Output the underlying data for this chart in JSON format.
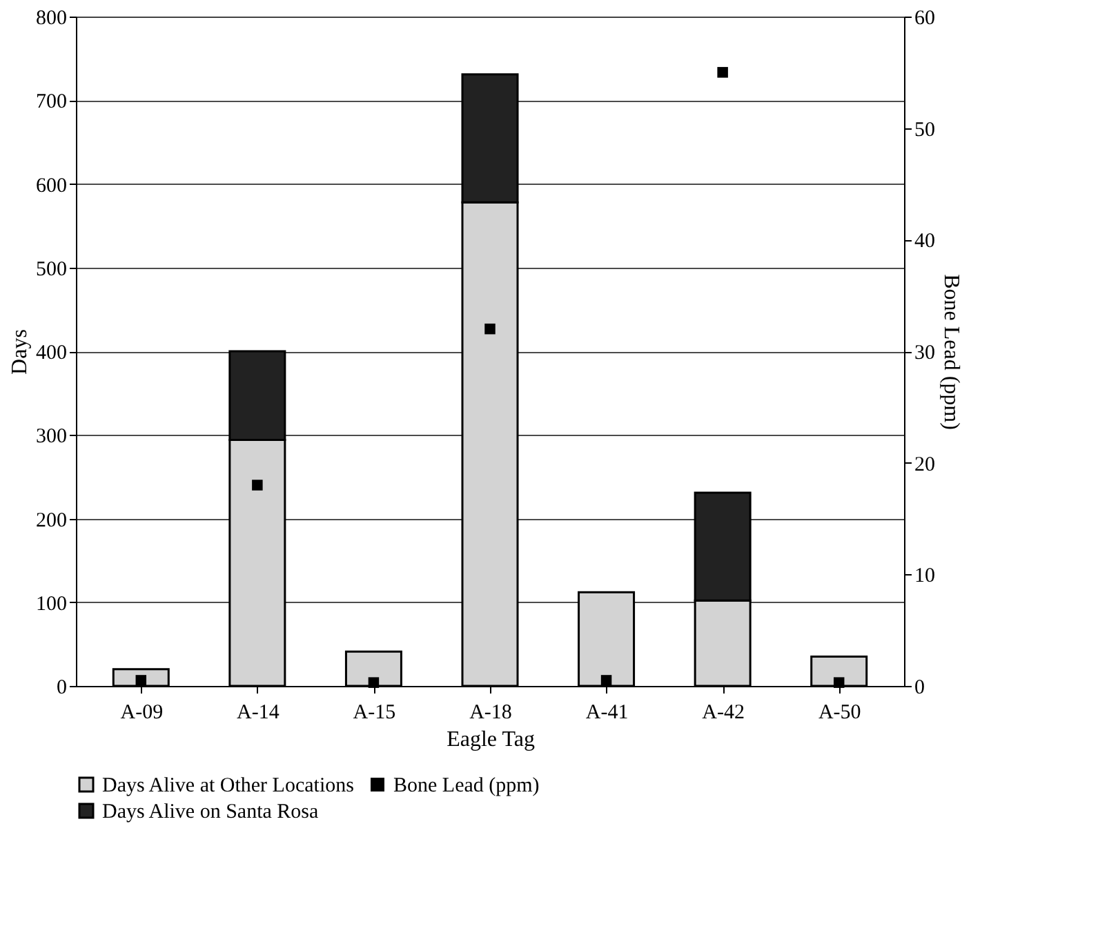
{
  "chart_data": {
    "type": "bar",
    "stacked": true,
    "xlabel": "Eagle Tag",
    "ylabel": "Days",
    "y2label": "Bone Lead (ppm)",
    "categories": [
      "A-09",
      "A-14",
      "A-15",
      "A-18",
      "A-41",
      "A-42",
      "A-50"
    ],
    "series": [
      {
        "name": "Days Alive at Other Locations",
        "color": "#d3d3d3",
        "values": [
          20,
          294,
          41,
          578,
          112,
          102,
          35
        ]
      },
      {
        "name": "Days Alive on Santa Rosa",
        "color": "#222222",
        "values": [
          0,
          106,
          0,
          153,
          0,
          129,
          0
        ]
      },
      {
        "name": "Bone Lead (ppm)",
        "type": "scatter",
        "axis": "y2",
        "color": "#000000",
        "marker": "square",
        "values": [
          0.5,
          18,
          0.3,
          32,
          0.5,
          55,
          0.3
        ]
      }
    ],
    "ylim": [
      0,
      800
    ],
    "yticks": [
      0,
      100,
      200,
      300,
      400,
      500,
      600,
      700,
      800
    ],
    "y2lim": [
      0,
      60
    ],
    "y2ticks": [
      0,
      10,
      20,
      30,
      40,
      50,
      60
    ],
    "grid": "y",
    "legend": "bottom"
  }
}
